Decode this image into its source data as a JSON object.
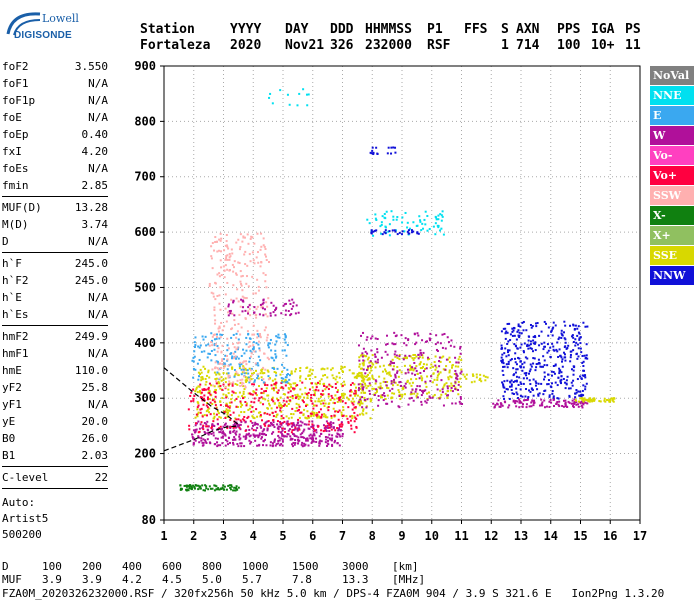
{
  "logo": {
    "line1": "Lowell",
    "line2": "DIGISONDE"
  },
  "header": {
    "labels": [
      "Station",
      "YYYY",
      "DAY",
      "DDD",
      "HHMMSS",
      "P1",
      "FFS",
      "S",
      "AXN",
      "PPS",
      "IGA",
      "PS"
    ],
    "values": [
      "Fortaleza",
      "2020",
      "Nov21",
      "326",
      "232000",
      "RSF",
      "",
      "1",
      "714",
      "100",
      "10+",
      "11"
    ]
  },
  "params_group1": [
    {
      "key": "foF2",
      "value": "3.550"
    },
    {
      "key": "foF1",
      "value": "N/A"
    },
    {
      "key": "foF1p",
      "value": "N/A"
    },
    {
      "key": "foE",
      "value": "N/A"
    },
    {
      "key": "foEp",
      "value": "0.40"
    },
    {
      "key": "fxI",
      "value": "4.20"
    },
    {
      "key": "foEs",
      "value": "N/A"
    },
    {
      "key": "fmin",
      "value": "2.85"
    }
  ],
  "params_group2": [
    {
      "key": "MUF(D)",
      "value": "13.28"
    },
    {
      "key": "M(D)",
      "value": "3.74"
    },
    {
      "key": "D",
      "value": "N/A"
    }
  ],
  "params_group3": [
    {
      "key": "h`F",
      "value": "245.0"
    },
    {
      "key": "h`F2",
      "value": "245.0"
    },
    {
      "key": "h`E",
      "value": "N/A"
    },
    {
      "key": "h`Es",
      "value": "N/A"
    }
  ],
  "params_group4": [
    {
      "key": "hmF2",
      "value": "249.9"
    },
    {
      "key": "hmF1",
      "value": "N/A"
    },
    {
      "key": "hmE",
      "value": "110.0"
    },
    {
      "key": "yF2",
      "value": "25.8"
    },
    {
      "key": "yF1",
      "value": "N/A"
    },
    {
      "key": "yE",
      "value": "20.0"
    },
    {
      "key": "B0",
      "value": "26.0"
    },
    {
      "key": "B1",
      "value": "2.03"
    }
  ],
  "params_group5": [
    {
      "key": "C-level",
      "value": "22"
    }
  ],
  "auto": [
    "Auto:",
    "Artist5",
    "500200"
  ],
  "legend": [
    {
      "label": "NoVal",
      "color": "#808080"
    },
    {
      "label": "NNE",
      "color": "#00e0f0"
    },
    {
      "label": "E",
      "color": "#3aa8f0"
    },
    {
      "label": "W",
      "color": "#b0109a"
    },
    {
      "label": "Vo-",
      "color": "#ff40c0"
    },
    {
      "label": "Vo+",
      "color": "#ff0040"
    },
    {
      "label": "SSW",
      "color": "#ffb0b0"
    },
    {
      "label": "X-",
      "color": "#108010"
    },
    {
      "label": "X+",
      "color": "#90c060"
    },
    {
      "label": "SSE",
      "color": "#d8d800"
    },
    {
      "label": "NNW",
      "color": "#1010d8"
    }
  ],
  "footer": {
    "d_label": "D",
    "d_values": [
      "100",
      "200",
      "400",
      "600",
      "800",
      "1000",
      "1500",
      "3000",
      "[km]"
    ],
    "muf_label": "MUF",
    "muf_values": [
      "3.9",
      "3.9",
      "4.2",
      "4.5",
      "5.0",
      "5.7",
      "7.8",
      "13.3",
      "[MHz]"
    ],
    "line3": "FZA0M_2020326232000.RSF / 320fx256h 50 kHz 5.0 km / DPS-4 FZA0M 904 / 3.9 S 321.6 E   Ion2Png 1.3.20"
  },
  "chart_data": {
    "type": "scatter",
    "xlim": [
      1,
      17
    ],
    "ylim": [
      80,
      900
    ],
    "xticks": [
      1,
      2,
      3,
      4,
      5,
      6,
      7,
      8,
      9,
      10,
      11,
      12,
      13,
      14,
      15,
      16,
      17
    ],
    "yticks": [
      80,
      200,
      300,
      400,
      500,
      600,
      700,
      800,
      900
    ],
    "grid": "dotted",
    "clusters": [
      {
        "series": "W",
        "x": [
          1.9,
          7.0
        ],
        "y": [
          215,
          260
        ],
        "n": 420
      },
      {
        "series": "SSE",
        "x": [
          2.0,
          8.0
        ],
        "y": [
          265,
          360
        ],
        "n": 520
      },
      {
        "series": "Vo+",
        "x": [
          1.8,
          7.5
        ],
        "y": [
          240,
          330
        ],
        "n": 320
      },
      {
        "series": "E",
        "x": [
          1.9,
          5.2
        ],
        "y": [
          330,
          420
        ],
        "n": 180
      },
      {
        "series": "SSW",
        "x": [
          2.5,
          4.5
        ],
        "y": [
          320,
          600
        ],
        "n": 300
      },
      {
        "series": "W",
        "x": [
          3.0,
          5.5
        ],
        "y": [
          450,
          480
        ],
        "n": 60
      },
      {
        "series": "NNW",
        "x": [
          12.3,
          15.2
        ],
        "y": [
          300,
          440
        ],
        "n": 420
      },
      {
        "series": "W",
        "x": [
          12.0,
          15.2
        ],
        "y": [
          285,
          300
        ],
        "n": 110
      },
      {
        "series": "SSE",
        "x": [
          7.5,
          11.0
        ],
        "y": [
          300,
          380
        ],
        "n": 260
      },
      {
        "series": "W",
        "x": [
          7.5,
          11.0
        ],
        "y": [
          285,
          420
        ],
        "n": 240
      },
      {
        "series": "SSE",
        "x": [
          14.8,
          16.2
        ],
        "y": [
          295,
          302
        ],
        "n": 50
      },
      {
        "series": "NNE",
        "x": [
          7.7,
          10.4
        ],
        "y": [
          595,
          640
        ],
        "n": 70
      },
      {
        "series": "NNW",
        "x": [
          7.9,
          9.6
        ],
        "y": [
          598,
          606
        ],
        "n": 30
      },
      {
        "series": "NNW",
        "x": [
          7.9,
          8.9
        ],
        "y": [
          742,
          755
        ],
        "n": 16
      },
      {
        "series": "X-",
        "x": [
          1.5,
          3.5
        ],
        "y": [
          135,
          145
        ],
        "n": 80
      },
      {
        "series": "NNE",
        "x": [
          3.5,
          6.0
        ],
        "y": [
          830,
          860
        ],
        "n": 12
      },
      {
        "series": "SSE",
        "x": [
          11.0,
          12.0
        ],
        "y": [
          330,
          345
        ],
        "n": 20
      }
    ],
    "traces": [
      {
        "name": "profile",
        "color": "#000000",
        "dashed": true,
        "points": [
          [
            1.0,
            355
          ],
          [
            2.0,
            310
          ],
          [
            2.6,
            285
          ],
          [
            3.1,
            270
          ],
          [
            3.55,
            250
          ]
        ]
      },
      {
        "name": "profile",
        "color": "#000000",
        "dashed": true,
        "points": [
          [
            1.0,
            205
          ],
          [
            2.0,
            225
          ],
          [
            2.6,
            240
          ],
          [
            3.1,
            248
          ],
          [
            3.55,
            250
          ]
        ]
      }
    ]
  }
}
